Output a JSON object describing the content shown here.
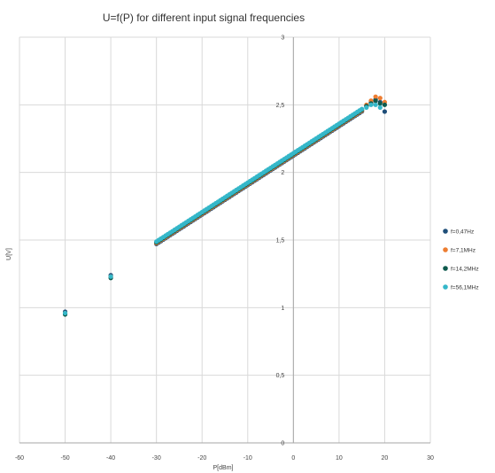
{
  "chart_data": {
    "type": "scatter",
    "title": "U=f(P) for different input signal frequencies",
    "xlabel": "P[dBm]",
    "ylabel": "U[V]",
    "xlim": [
      -60,
      30
    ],
    "ylim": [
      0,
      3
    ],
    "xticks": [
      -60,
      -50,
      -40,
      -30,
      -20,
      -10,
      0,
      10,
      20,
      30
    ],
    "xtick_labels": [
      "-60",
      "-50",
      "-40",
      "-30",
      "-20",
      "-10",
      "0",
      "10",
      "20",
      "30"
    ],
    "yticks": [
      0,
      0.5,
      1,
      1.5,
      2,
      2.5,
      3
    ],
    "ytick_labels": [
      "0",
      "0,5",
      "1",
      "1,5",
      "2",
      "2,5",
      "3"
    ],
    "grid": true,
    "legend_position": "right",
    "sweep": {
      "linear_from_x": -30,
      "linear_to_x": 15,
      "linear_from_y": 1.48,
      "linear_to_y": 2.46,
      "step": 0.5
    },
    "series": [
      {
        "name": "f=0,47Hz",
        "color": "#1f4e79",
        "extra_points": [
          [
            -50,
            0.97
          ],
          [
            -40,
            1.24
          ],
          [
            16,
            2.49
          ],
          [
            17,
            2.52
          ],
          [
            18,
            2.54
          ],
          [
            19,
            2.52
          ],
          [
            20,
            2.45
          ]
        ]
      },
      {
        "name": "f=7,1MHz",
        "color": "#ed7d31",
        "extra_points": [
          [
            -50,
            0.96
          ],
          [
            -40,
            1.23
          ],
          [
            16,
            2.5
          ],
          [
            17,
            2.53
          ],
          [
            18,
            2.56
          ],
          [
            19,
            2.55
          ],
          [
            20,
            2.52
          ]
        ]
      },
      {
        "name": "f=14,2MHz",
        "color": "#0e5a4d",
        "extra_points": [
          [
            -50,
            0.95
          ],
          [
            -40,
            1.22
          ],
          [
            16,
            2.49
          ],
          [
            17,
            2.51
          ],
          [
            18,
            2.53
          ],
          [
            19,
            2.51
          ],
          [
            20,
            2.5
          ]
        ]
      },
      {
        "name": "f=56,1MHz",
        "color": "#35b7c9",
        "extra_points": [
          [
            -50,
            0.96
          ],
          [
            -40,
            1.23
          ],
          [
            16,
            2.48
          ],
          [
            17,
            2.5
          ],
          [
            18,
            2.5
          ],
          [
            19,
            2.48
          ]
        ]
      }
    ]
  }
}
